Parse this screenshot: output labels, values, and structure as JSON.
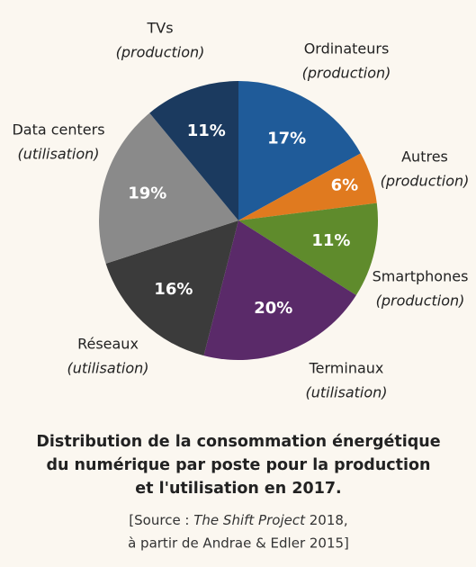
{
  "chart_data": {
    "type": "pie",
    "categories": [
      "Ordinateurs",
      "Autres",
      "Smartphones",
      "Terminaux",
      "Réseaux",
      "Data centers",
      "TVs"
    ],
    "sublabels": [
      "(production)",
      "(production)",
      "(production)",
      "(utilisation)",
      "(utilisation)",
      "(utilisation)",
      "(production)"
    ],
    "values": [
      17,
      6,
      11,
      20,
      16,
      19,
      11
    ],
    "value_labels": [
      "17%",
      "6%",
      "11%",
      "20%",
      "16%",
      "19%",
      "11%"
    ],
    "colors": [
      "#1f5b99",
      "#e07a1f",
      "#5f8b2c",
      "#5a2a69",
      "#3b3b3b",
      "#8a8a8a",
      "#1b3a5f"
    ],
    "title_lines": [
      "Distribution de la consommation énergétique",
      "du numérique par poste pour la production",
      "et l'utilisation en 2017."
    ],
    "source": [
      "[Source : ",
      "The Shift Project",
      " 2018,",
      "à partir de Andrae & Edler 2015]"
    ]
  }
}
